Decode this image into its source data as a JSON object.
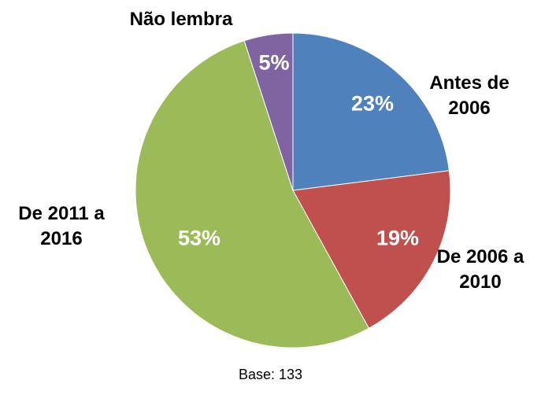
{
  "chart_data": {
    "type": "pie",
    "categories": [
      "Antes de 2006",
      "De 2006 a 2010",
      "De 2011 a 2016",
      "Não lembra"
    ],
    "values": [
      23,
      19,
      53,
      5
    ],
    "value_labels": [
      "23%",
      "19%",
      "53%",
      "5%"
    ],
    "colors": [
      "#4f81bd",
      "#c0504d",
      "#9bbb59",
      "#8064a2"
    ],
    "footnote": "Base: 133"
  }
}
